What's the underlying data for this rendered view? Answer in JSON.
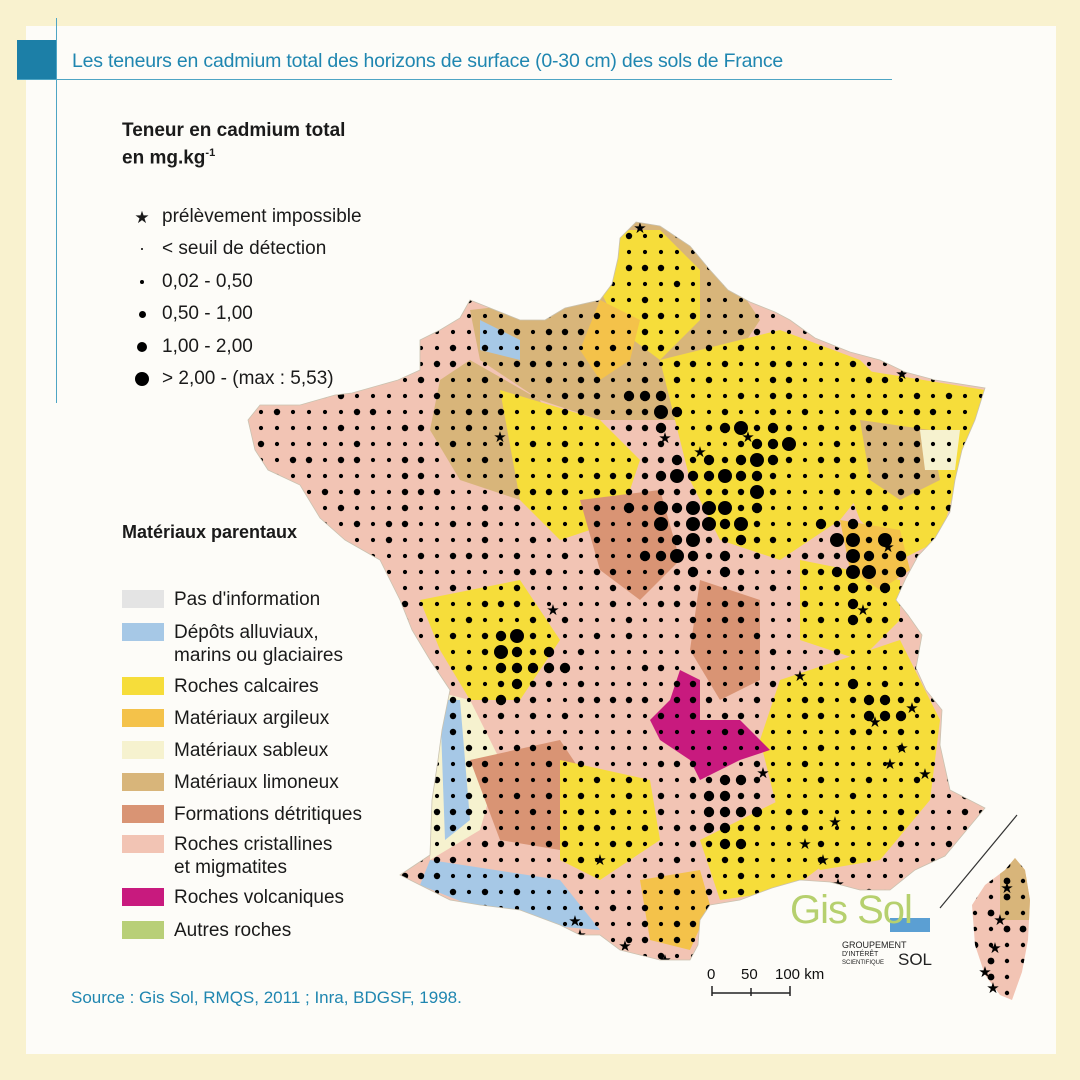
{
  "title": "Les teneurs en cadmium total des horizons de surface (0-30 cm) des sols de France",
  "cadmium_legend": {
    "title_line1": "Teneur en cadmium total",
    "title_line2": "en mg.kg",
    "title_exp": "-1",
    "items": [
      {
        "symbol": "star-icon",
        "label": "prélèvement impossible"
      },
      {
        "symbol": "dot-tiny",
        "label": "< seuil de détection"
      },
      {
        "symbol": "dot-small",
        "label": "0,02 - 0,50"
      },
      {
        "symbol": "dot-medium",
        "label": "0,50 - 1,00"
      },
      {
        "symbol": "dot-large",
        "label": "1,00 - 2,00"
      },
      {
        "symbol": "dot-xlarge",
        "label": "> 2,00 - (max : 5,53)"
      }
    ]
  },
  "materials_legend": {
    "title": "Matériaux parentaux",
    "items": [
      {
        "label": "Pas d'information",
        "color": "#e4e4e4"
      },
      {
        "label": "Dépôts alluviaux,",
        "label2": "marins ou glaciaires",
        "color": "#a6c8e6"
      },
      {
        "label": "Roches calcaires",
        "color": "#f6dd3a"
      },
      {
        "label": "Matériaux argileux",
        "color": "#f4c24a"
      },
      {
        "label": "Matériaux sableux",
        "color": "#f6f2cf"
      },
      {
        "label": "Matériaux limoneux",
        "color": "#d8b57a"
      },
      {
        "label": "Formations détritiques",
        "color": "#d99474"
      },
      {
        "label": "Roches cristallines",
        "label2": "et migmatites",
        "color": "#f2c4b4"
      },
      {
        "label": "Roches volcaniques",
        "color": "#c81a7e"
      },
      {
        "label": "Autres roches",
        "color": "#b8cf78"
      }
    ]
  },
  "scale": {
    "labels": [
      "0",
      "50",
      "100 km"
    ]
  },
  "logo": {
    "name": "Gis Sol",
    "subtitle1": "GROUPEMENT",
    "subtitle2": "D'INTÉRÊT",
    "subtitle3": "SCIENTIFIQUE",
    "subtitle_sol": "SOL"
  },
  "source": "Source : Gis Sol, RMQS, 2011 ; Inra, BDGSF, 1998."
}
